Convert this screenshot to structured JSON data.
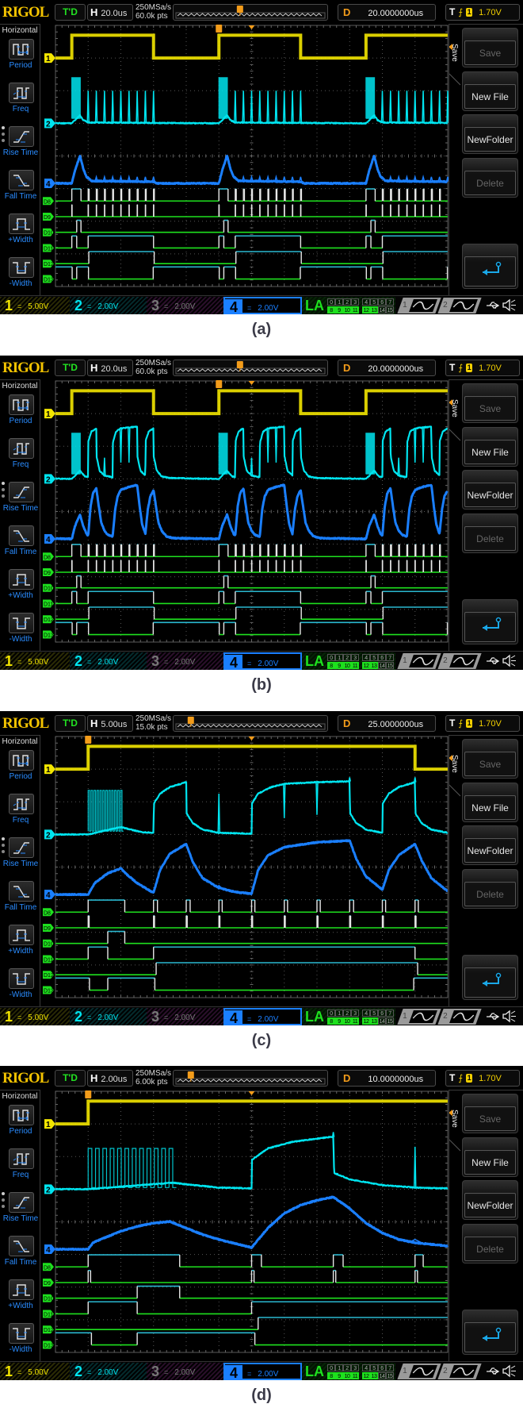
{
  "sidebar": {
    "title": "Horizontal",
    "items": [
      {
        "label": "Period",
        "icon": "period-icon"
      },
      {
        "label": "Freq",
        "icon": "frequency-icon"
      },
      {
        "label": "Rise Time",
        "icon": "rise-time-icon"
      },
      {
        "label": "Fall Time",
        "icon": "fall-time-icon"
      },
      {
        "label": "+Width",
        "icon": "positive-width-icon"
      },
      {
        "label": "-Width",
        "icon": "negative-width-icon"
      }
    ]
  },
  "menu": {
    "title": "Save",
    "buttons": [
      {
        "label": "Save",
        "enabled": false
      },
      {
        "label": "New File",
        "enabled": true
      },
      {
        "label": "NewFolder",
        "enabled": true
      },
      {
        "label": "Delete",
        "enabled": false
      },
      {
        "label": "",
        "icon": "return-arrow-icon",
        "enabled": true
      }
    ]
  },
  "status_bar": {
    "ch1": {
      "num": "1",
      "coupling": "=",
      "scale": "5.00V",
      "color": "#f3e600"
    },
    "ch2": {
      "num": "2",
      "coupling": "=",
      "scale": "2.00V",
      "color": "#00e5f0"
    },
    "ch3": {
      "num": "3",
      "coupling": "=",
      "scale": "2.00V",
      "color": "#9a5a9a"
    },
    "ch4": {
      "num": "4",
      "coupling": "=",
      "scale": "2.00V",
      "color": "#1a7fff"
    },
    "la": {
      "label": "LA",
      "top_row": [
        "0",
        "1",
        "2",
        "3",
        "4",
        "5",
        "6",
        "7"
      ],
      "bottom_row": [
        "8",
        "9",
        "10",
        "11",
        "12",
        "13",
        "14",
        "15"
      ],
      "active": [
        "8",
        "9",
        "10",
        "11",
        "12",
        "13"
      ]
    },
    "gen1": "1",
    "gen2": "2",
    "icons": [
      "usb-icon",
      "speaker-muted-icon"
    ]
  },
  "header": {
    "logo": "RIGOL",
    "run_state": "T'D",
    "h_key": "H",
    "d_key": "D",
    "t_key": "T",
    "trigger_source": "1",
    "trigger_level": "1.70V",
    "trigger_edge": "rising"
  },
  "colors": {
    "ch1": "#f3e600",
    "ch2": "#00e5f0",
    "ch4": "#1a7fff",
    "digital_low": "#1ee01e",
    "digital_high": "#2ab8d0",
    "digital_edge": "#e8e8e8",
    "accent": "#f39c1a"
  },
  "ch1": {
    "intervals_high_us": [
      [
        0,
        50
      ]
    ],
    "low_v": 0,
    "high_v": 3.5
  },
  "digital": [
    {
      "name": "D8",
      "idle": 0,
      "toggle_us": [
        [
          0,
          5.6
        ],
        [
          10,
          10.6
        ],
        [
          15,
          15.6
        ],
        [
          20,
          20.5
        ],
        [
          25,
          25.5
        ],
        [
          30,
          30.5
        ],
        [
          35,
          35.5
        ],
        [
          40,
          40.6
        ],
        [
          45,
          45.5
        ],
        [
          50,
          50.5
        ]
      ]
    },
    {
      "name": "D9",
      "idle": 0,
      "toggle_us": [
        [
          0,
          0.15
        ],
        [
          10,
          10.15
        ],
        [
          15,
          15.15
        ],
        [
          20,
          20.15
        ],
        [
          25,
          25.15
        ],
        [
          30,
          30.15
        ],
        [
          35,
          35.15
        ],
        [
          40,
          40.15
        ],
        [
          45,
          45.15
        ],
        [
          50,
          50.15
        ]
      ]
    },
    {
      "name": "D10",
      "idle": 0,
      "toggle_us": [
        [
          3,
          5.6
        ]
      ]
    },
    {
      "name": "D11",
      "idle": 0,
      "toggle_us": [
        [
          0,
          3
        ],
        [
          10,
          50
        ]
      ]
    },
    {
      "name": "D12",
      "idle": 0,
      "toggle_us": [
        [
          10.4,
          50.4
        ]
      ]
    },
    {
      "name": "D13",
      "idle": 1,
      "toggle_us": [
        [
          0.2,
          3
        ],
        [
          10.2,
          49.8
        ]
      ]
    }
  ],
  "panels": [
    {
      "caption": "(a)",
      "timebase": "20.0us",
      "sample_rate": "250MSa/s",
      "memory": "60.0k pts",
      "delay": "20.0000000us",
      "h_us_per_div": 20,
      "delay_us": 20,
      "trigger_position_fraction": 0.43,
      "cycle_starts_us": [
        -180,
        -90,
        0,
        90
      ],
      "ch2": {
        "points": [
          [
            0,
            0
          ],
          [
            5,
            0.5
          ],
          [
            7,
            0.2
          ],
          [
            10,
            0.05
          ],
          [
            90,
            0
          ]
        ],
        "burst": {
          "from": 0,
          "to": 5,
          "low": 0.3,
          "high": 2.8
        },
        "spikes": [
          [
            10,
            2
          ],
          [
            15,
            2
          ],
          [
            20,
            2
          ],
          [
            25,
            2
          ],
          [
            30,
            2
          ],
          [
            35,
            2
          ],
          [
            40,
            2
          ],
          [
            45,
            2
          ],
          [
            50,
            2
          ]
        ]
      },
      "ch4": {
        "points": [
          [
            0,
            0
          ],
          [
            2,
            0.8
          ],
          [
            5,
            1.7
          ],
          [
            7,
            0.9
          ],
          [
            9,
            0.4
          ],
          [
            12,
            0.15
          ],
          [
            50,
            0.1
          ],
          [
            52,
            0
          ],
          [
            90,
            0
          ]
        ],
        "spikes": [
          [
            10,
            0.4
          ],
          [
            15,
            0.4
          ],
          [
            20,
            0.4
          ],
          [
            25,
            0.4
          ],
          [
            30,
            0.4
          ],
          [
            35,
            0.4
          ],
          [
            40,
            0.4
          ],
          [
            45,
            0.4
          ],
          [
            50,
            0.4
          ]
        ]
      }
    },
    {
      "caption": "(b)",
      "timebase": "20.0us",
      "sample_rate": "250MSa/s",
      "memory": "60.0k pts",
      "delay": "20.0000000us",
      "h_us_per_div": 20,
      "delay_us": 20,
      "trigger_position_fraction": 0.43,
      "cycle_starts_us": [
        -180,
        -90,
        0,
        90
      ],
      "ch2": {
        "points": [
          [
            0,
            0
          ],
          [
            5,
            0.5
          ],
          [
            8,
            0.15
          ],
          [
            10,
            0.1
          ],
          [
            10.1,
            2.3
          ],
          [
            12,
            2.9
          ],
          [
            15,
            3.1
          ],
          [
            15.1,
            1.4
          ],
          [
            17,
            0.5
          ],
          [
            20,
            0.2
          ],
          [
            25,
            0.1
          ],
          [
            25.1,
            2.2
          ],
          [
            27,
            2.9
          ],
          [
            30,
            3.1
          ],
          [
            40,
            3.2
          ],
          [
            40.1,
            1.4
          ],
          [
            42,
            0.5
          ],
          [
            45,
            0.2
          ],
          [
            45.1,
            2.3
          ],
          [
            47,
            2.9
          ],
          [
            50,
            3.1
          ],
          [
            50.1,
            1.4
          ],
          [
            52,
            0.5
          ],
          [
            55,
            0.15
          ],
          [
            60,
            0.05
          ],
          [
            90,
            0
          ]
        ],
        "burst": {
          "from": 0,
          "to": 5,
          "low": 0.3,
          "high": 2.8
        },
        "spikes": [
          [
            20,
            1.3
          ],
          [
            30,
            1.0
          ],
          [
            35,
            1.0
          ]
        ]
      },
      "ch4": {
        "points": [
          [
            0,
            0
          ],
          [
            2,
            0.8
          ],
          [
            5,
            1.5
          ],
          [
            7,
            0.8
          ],
          [
            9,
            0.3
          ],
          [
            10,
            0.2
          ],
          [
            11.5,
            2.0
          ],
          [
            13,
            2.8
          ],
          [
            15,
            3.1
          ],
          [
            16.5,
            2.0
          ],
          [
            18,
            1.0
          ],
          [
            20,
            0.5
          ],
          [
            22,
            0.25
          ],
          [
            25,
            0.15
          ],
          [
            26.5,
            1.8
          ],
          [
            28,
            2.6
          ],
          [
            30,
            3.0
          ],
          [
            35,
            3.2
          ],
          [
            40,
            3.3
          ],
          [
            41.5,
            2.0
          ],
          [
            43,
            0.9
          ],
          [
            45,
            0.3
          ],
          [
            46.5,
            1.8
          ],
          [
            48,
            2.6
          ],
          [
            50,
            3.0
          ],
          [
            51.5,
            2.0
          ],
          [
            53,
            1.0
          ],
          [
            55,
            0.5
          ],
          [
            58,
            0.15
          ],
          [
            62,
            0.05
          ],
          [
            90,
            0
          ]
        ],
        "spikes": []
      }
    },
    {
      "caption": "(c)",
      "timebase": "5.00us",
      "sample_rate": "250MSa/s",
      "memory": "15.0k pts",
      "delay": "25.0000000us",
      "h_us_per_div": 5,
      "delay_us": 25,
      "trigger_position_fraction": 0.1,
      "cycle_starts_us": [
        0
      ],
      "ch2": {
        "points": [
          [
            0,
            0
          ],
          [
            5,
            0.45
          ],
          [
            6,
            0.35
          ],
          [
            8,
            0.15
          ],
          [
            10,
            0.1
          ],
          [
            10.05,
            1.9
          ],
          [
            11,
            2.5
          ],
          [
            12.5,
            2.9
          ],
          [
            15,
            3.2
          ],
          [
            15.05,
            1.3
          ],
          [
            16,
            0.7
          ],
          [
            17.5,
            0.3
          ],
          [
            20,
            0.1
          ],
          [
            25,
            0.05
          ],
          [
            25.05,
            1.9
          ],
          [
            26,
            2.5
          ],
          [
            28,
            2.9
          ],
          [
            30,
            3.1
          ],
          [
            35,
            3.2
          ],
          [
            40,
            3.25
          ],
          [
            40.05,
            1.3
          ],
          [
            41,
            0.7
          ],
          [
            42.5,
            0.3
          ],
          [
            45,
            0.1
          ],
          [
            45.05,
            1.9
          ],
          [
            46,
            2.5
          ],
          [
            47.5,
            2.9
          ],
          [
            50,
            3.2
          ],
          [
            50.05,
            1.3
          ],
          [
            51,
            0.7
          ],
          [
            52.5,
            0.3
          ],
          [
            55,
            0.1
          ]
        ],
        "burst": {
          "from": 0,
          "to": 5,
          "low": 0.2,
          "high": 2.7
        },
        "spikes": [
          [
            20,
            2.5
          ],
          [
            30,
            1.0
          ],
          [
            35,
            1.2
          ],
          [
            40,
            3.5
          ],
          [
            50,
            3.5
          ]
        ]
      },
      "ch4": {
        "points": [
          [
            0,
            0
          ],
          [
            1,
            0.7
          ],
          [
            3,
            1.3
          ],
          [
            5,
            1.6
          ],
          [
            6,
            1.2
          ],
          [
            7.5,
            0.7
          ],
          [
            10,
            0.1
          ],
          [
            11,
            1.5
          ],
          [
            12.5,
            2.5
          ],
          [
            15,
            3.1
          ],
          [
            16,
            2.0
          ],
          [
            17.5,
            1.0
          ],
          [
            20,
            0.4
          ],
          [
            22.5,
            0.15
          ],
          [
            25,
            0.05
          ],
          [
            26,
            1.5
          ],
          [
            27.5,
            2.4
          ],
          [
            30,
            2.9
          ],
          [
            35,
            3.2
          ],
          [
            40,
            3.3
          ],
          [
            41,
            2.2
          ],
          [
            42.5,
            1.1
          ],
          [
            45,
            0.3
          ],
          [
            46,
            1.5
          ],
          [
            47.5,
            2.4
          ],
          [
            50,
            3.1
          ],
          [
            51,
            2.1
          ],
          [
            52.5,
            1.0
          ],
          [
            55,
            0.2
          ]
        ],
        "spikes": [
          [
            20,
            0.55
          ]
        ]
      }
    },
    {
      "caption": "(d)",
      "timebase": "2.00us",
      "sample_rate": "250MSa/s",
      "memory": "6.00k pts",
      "delay": "10.0000000us",
      "h_us_per_div": 2,
      "delay_us": 10,
      "trigger_position_fraction": 0.1,
      "cycle_starts_us": [
        0
      ],
      "ch2": {
        "points": [
          [
            0,
            0
          ],
          [
            5.2,
            0.4
          ],
          [
            6,
            0.3
          ],
          [
            8,
            0.1
          ],
          [
            10,
            0.05
          ],
          [
            10.02,
            1.8
          ],
          [
            11,
            2.5
          ],
          [
            12.5,
            2.9
          ],
          [
            14.8,
            3.2
          ],
          [
            15,
            3.2
          ],
          [
            15.05,
            1.0
          ],
          [
            16,
            0.6
          ],
          [
            18,
            0.25
          ],
          [
            20,
            0.1
          ],
          [
            22,
            0.05
          ]
        ],
        "burst": {
          "from": 0,
          "to": 5.1,
          "low": 0.1,
          "high": 2.5
        },
        "spikes": [
          [
            15,
            3.5
          ],
          [
            20,
            2.6
          ]
        ]
      },
      "ch4": {
        "points": [
          [
            0,
            0
          ],
          [
            0.3,
            0.4
          ],
          [
            1,
            0.7
          ],
          [
            2,
            1.1
          ],
          [
            3,
            1.4
          ],
          [
            4,
            1.6
          ],
          [
            5,
            1.7
          ],
          [
            6,
            1.3
          ],
          [
            7,
            0.9
          ],
          [
            8,
            0.6
          ],
          [
            9,
            0.35
          ],
          [
            10,
            0.1
          ],
          [
            11,
            1.3
          ],
          [
            12,
            2.2
          ],
          [
            13,
            2.7
          ],
          [
            14,
            3.0
          ],
          [
            15,
            3.2
          ],
          [
            16,
            2.5
          ],
          [
            17,
            1.6
          ],
          [
            18,
            1.0
          ],
          [
            19,
            0.6
          ],
          [
            20,
            0.4
          ],
          [
            21,
            0.3
          ],
          [
            22,
            0.2
          ]
        ],
        "spikes": [
          [
            20,
            0.6
          ]
        ]
      }
    }
  ]
}
